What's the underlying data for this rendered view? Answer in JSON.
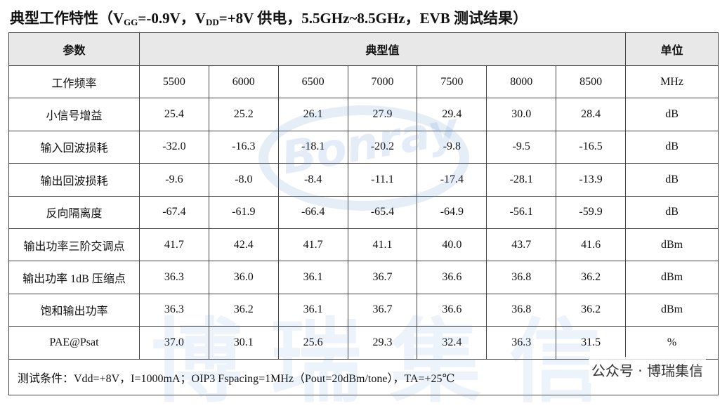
{
  "header": {
    "title_parts": [
      {
        "text": "典型工作特性（V"
      },
      {
        "text": "GG",
        "sub": true
      },
      {
        "text": "=-0.9V，V"
      },
      {
        "text": "DD",
        "sub": true
      },
      {
        "text": "=+8V 供电，5.5GHz~8.5GHz，EVB 测试结果）"
      }
    ]
  },
  "table": {
    "columns": [
      "参数",
      "典型值",
      "单位"
    ],
    "rows": [
      [
        "工作频率",
        "5500",
        "6000",
        "6500",
        "7000",
        "7500",
        "8000",
        "8500",
        "MHz"
      ],
      [
        "小信号增益",
        "25.4",
        "25.2",
        "26.1",
        "27.9",
        "29.4",
        "30.0",
        "28.4",
        "dB"
      ],
      [
        "输入回波损耗",
        "-32.0",
        "-16.3",
        "-18.1",
        "-20.2",
        "-9.8",
        "-9.5",
        "-16.5",
        "dB"
      ],
      [
        "输出回波损耗",
        "-9.6",
        "-8.0",
        "-8.4",
        "-11.1",
        "-17.4",
        "-28.1",
        "-13.9",
        "dB"
      ],
      [
        "反向隔离度",
        "-67.4",
        "-61.9",
        "-66.4",
        "-65.4",
        "-64.9",
        "-56.1",
        "-59.9",
        "dB"
      ],
      [
        "输出功率三阶交调点",
        "41.7",
        "42.4",
        "41.7",
        "41.1",
        "40.0",
        "43.7",
        "41.6",
        "dBm"
      ],
      [
        "输出功率 1dB 压缩点",
        "36.3",
        "36.0",
        "36.1",
        "36.7",
        "36.6",
        "36.8",
        "36.2",
        "dBm"
      ],
      [
        "饱和输出功率",
        "36.3",
        "36.2",
        "36.1",
        "36.7",
        "36.6",
        "36.8",
        "36.2",
        "dBm"
      ],
      [
        "PAE@Psat",
        "37.0",
        "30.1",
        "25.6",
        "29.3",
        "32.4",
        "36.3",
        "31.5",
        "%"
      ]
    ],
    "footer": "测试条件：Vdd=+8V，I=1000mA；OIP3 Fspacing=1MHz（Pout=20dBm/tone），TA=+25℃"
  },
  "watermark": {
    "logo": "Bonray",
    "brand": "博瑞集信",
    "account": "公众号 · 博瑞集信"
  }
}
